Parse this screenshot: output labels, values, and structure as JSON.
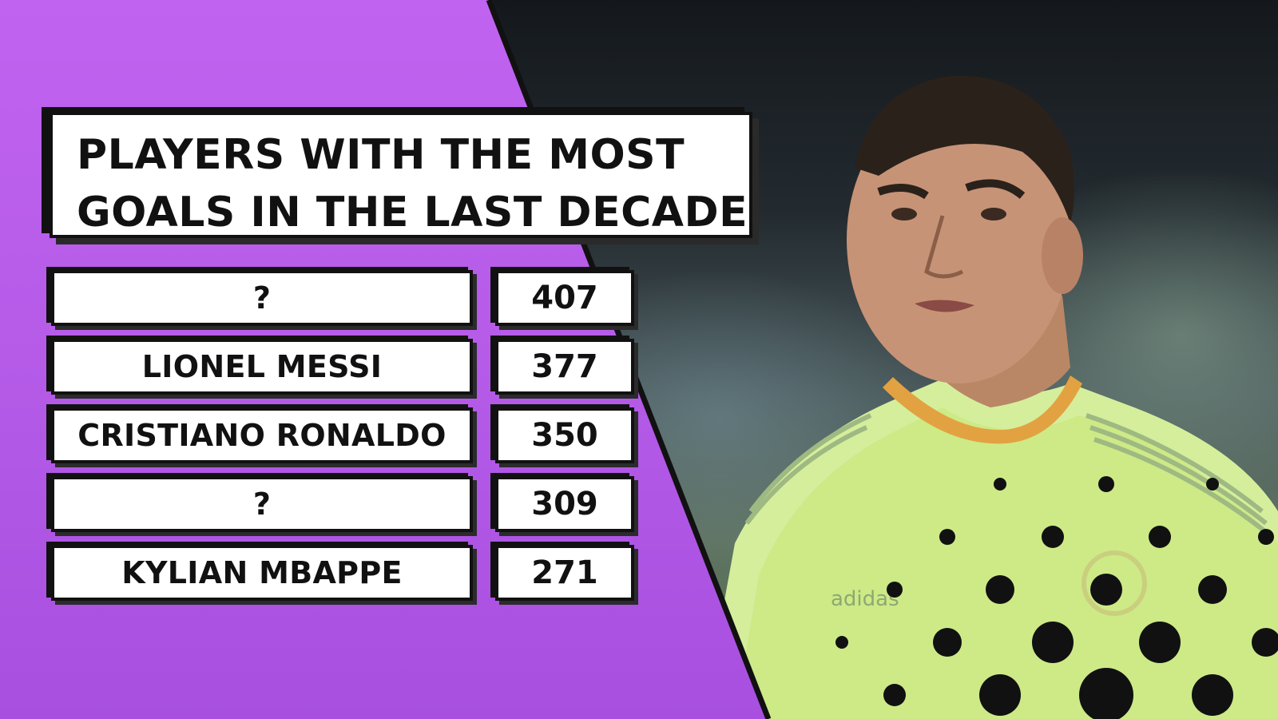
{
  "title": {
    "line1": "PLAYERS WITH THE MOST",
    "line2": "GOALS IN THE LAST DECADE"
  },
  "rows": [
    {
      "name": "?",
      "goals": "407"
    },
    {
      "name": "LIONEL MESSI",
      "goals": "377"
    },
    {
      "name": "CRISTIANO RONALDO",
      "goals": "350"
    },
    {
      "name": "?",
      "goals": "309"
    },
    {
      "name": "KYLIAN MBAPPE",
      "goals": "271"
    }
  ],
  "chart_data": {
    "type": "table",
    "title": "PLAYERS WITH THE MOST GOALS IN THE LAST DECADE",
    "categories": [
      "?",
      "LIONEL MESSI",
      "CRISTIANO RONALDO",
      "?",
      "KYLIAN MBAPPE"
    ],
    "values": [
      407,
      377,
      350,
      309,
      271
    ]
  },
  "photo": {
    "shirt_brand": "adidas",
    "colors": {
      "shirt": "#d9f0a0",
      "collar": "#e8a43a",
      "purple": "#b85ee9"
    }
  }
}
